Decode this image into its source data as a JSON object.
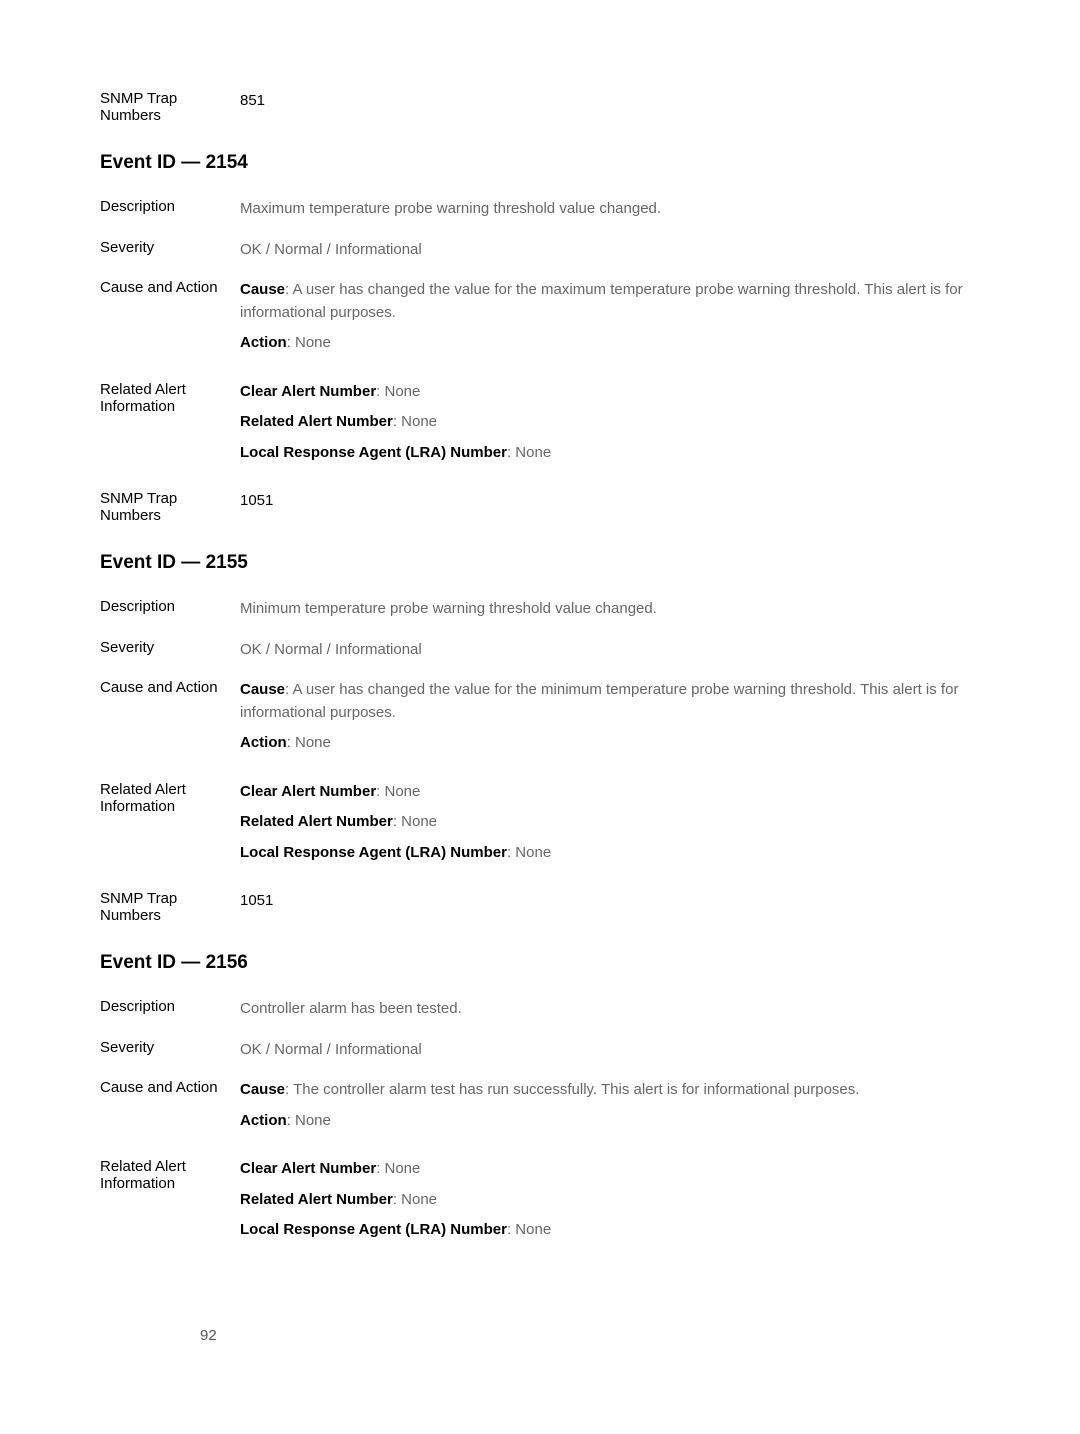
{
  "top": {
    "snmp_label": "SNMP Trap Numbers",
    "snmp_value": "851"
  },
  "sections": [
    {
      "title": "Event ID — 2154",
      "rows": {
        "description_label": "Description",
        "description_value": "Maximum temperature probe warning threshold value changed.",
        "severity_label": "Severity",
        "severity_value": "OK / Normal / Informational",
        "cause_label": "Cause and Action",
        "cause_bold": "Cause",
        "cause_text": ": A user has changed the value for the maximum temperature probe warning threshold. This alert is for informational purposes.",
        "action_bold": "Action",
        "action_text": ": None",
        "related_label": "Related Alert Information",
        "clear_bold": "Clear Alert Number",
        "clear_text": ": None",
        "related_bold": "Related Alert Number",
        "related_text": ": None",
        "lra_bold": "Local Response Agent (LRA) Number",
        "lra_text": ": None",
        "snmp_label": "SNMP Trap Numbers",
        "snmp_value": "1051"
      }
    },
    {
      "title": "Event ID — 2155",
      "rows": {
        "description_label": "Description",
        "description_value": "Minimum temperature probe warning threshold value changed.",
        "severity_label": "Severity",
        "severity_value": "OK / Normal / Informational",
        "cause_label": "Cause and Action",
        "cause_bold": "Cause",
        "cause_text": ": A user has changed the value for the minimum temperature probe warning threshold. This alert is for informational purposes.",
        "action_bold": "Action",
        "action_text": ": None",
        "related_label": "Related Alert Information",
        "clear_bold": "Clear Alert Number",
        "clear_text": ": None",
        "related_bold": "Related Alert Number",
        "related_text": ": None",
        "lra_bold": "Local Response Agent (LRA) Number",
        "lra_text": ": None",
        "snmp_label": "SNMP Trap Numbers",
        "snmp_value": "1051"
      }
    },
    {
      "title": "Event ID — 2156",
      "rows": {
        "description_label": "Description",
        "description_value": "Controller alarm has been tested.",
        "severity_label": "Severity",
        "severity_value": "OK / Normal / Informational",
        "cause_label": "Cause and Action",
        "cause_bold": "Cause",
        "cause_text": ": The controller alarm test has run successfully. This alert is for informational purposes.",
        "action_bold": "Action",
        "action_text": ": None",
        "related_label": "Related Alert Information",
        "clear_bold": "Clear Alert Number",
        "clear_text": ": None",
        "related_bold": "Related Alert Number",
        "related_text": ": None",
        "lra_bold": "Local Response Agent (LRA) Number",
        "lra_text": ": None"
      }
    }
  ],
  "page_number": "92"
}
